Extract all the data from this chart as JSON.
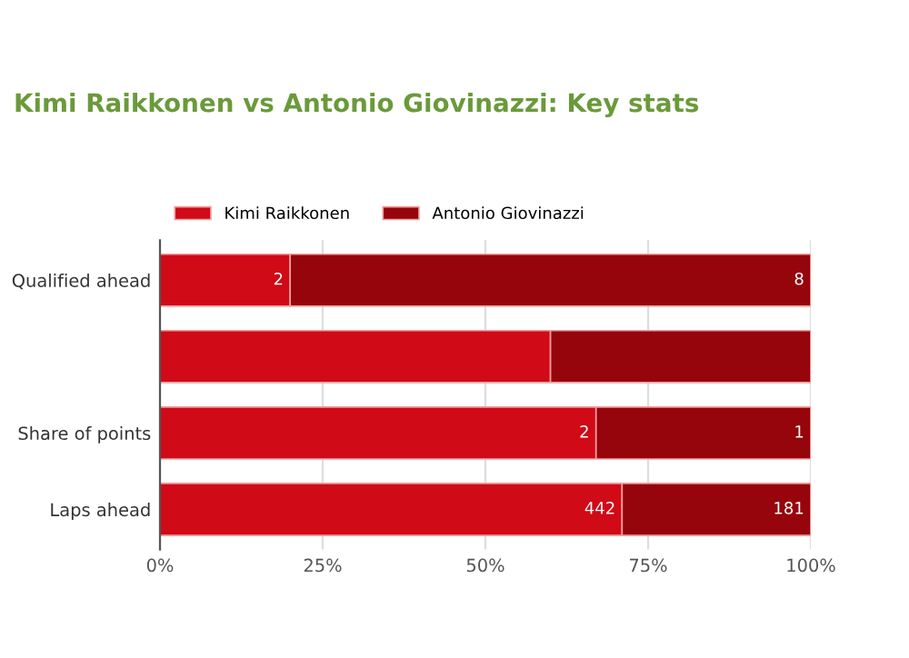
{
  "chart_data": {
    "type": "bar",
    "orientation": "horizontal",
    "stacked": true,
    "title": "Kimi Raikkonen vs Antonio Giovinazzi: Key stats",
    "categories": [
      "Qualified ahead",
      null,
      "Share of points",
      "Laps ahead"
    ],
    "series": [
      {
        "name": "Kimi Raikkonen",
        "color": "#d00a16",
        "values": [
          20,
          60,
          67,
          71
        ]
      },
      {
        "name": "Antonio Giovinazzi",
        "color": "#96040c",
        "values": [
          80,
          40,
          33,
          29
        ]
      }
    ],
    "annotations": [
      {
        "text": "2",
        "x": 20,
        "y": "Qualified ahead"
      },
      {
        "text": "8",
        "x": 100,
        "y": "Qualified ahead"
      },
      {
        "text": "2",
        "x": 67,
        "y": "Share of points"
      },
      {
        "text": "1",
        "x": 100,
        "y": "Share of points"
      },
      {
        "text": "442",
        "x": 71,
        "y": "Laps ahead"
      },
      {
        "text": "181",
        "x": 100,
        "y": "Laps ahead"
      }
    ],
    "xlim": [
      0,
      100
    ],
    "xticks": [
      {
        "value": 0,
        "label": "0%"
      },
      {
        "value": 25,
        "label": "25%"
      },
      {
        "value": 50,
        "label": "50%"
      },
      {
        "value": 75,
        "label": "75%"
      },
      {
        "value": 100,
        "label": "100%"
      }
    ],
    "grid": "x",
    "legend": "top left"
  }
}
